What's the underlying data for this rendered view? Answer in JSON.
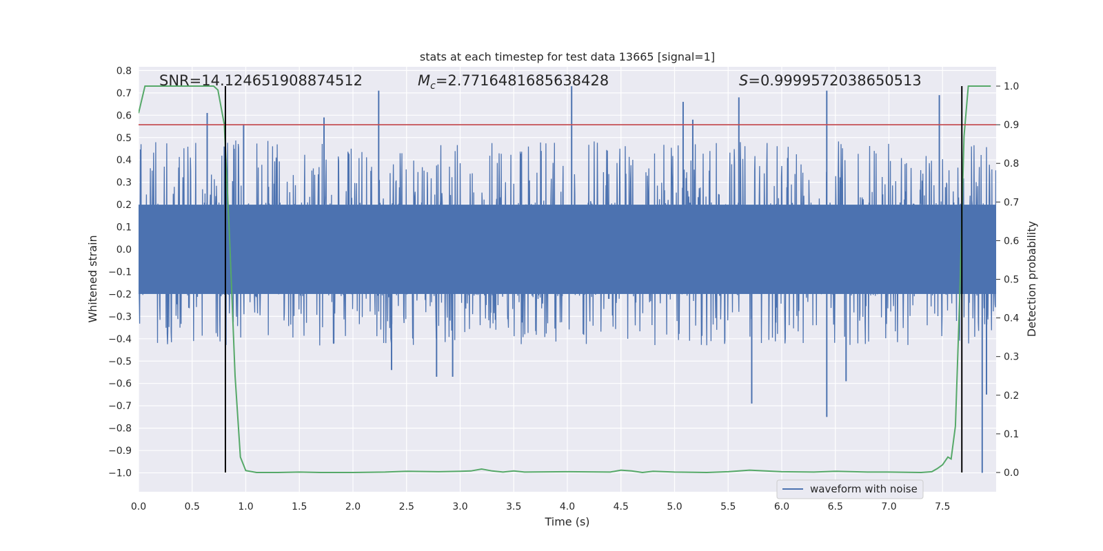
{
  "chart_data": {
    "type": "line",
    "title": "stats at each timestep for test data 13665 [signal=1]",
    "xlabel": "Time (s)",
    "ylabel_left": "Whitened strain",
    "ylabel_right": "Detection probability",
    "xlim": [
      0.0,
      8.0
    ],
    "ylim_left": [
      -1.08,
      0.82
    ],
    "ylim_right": [
      -0.05,
      1.085
    ],
    "x_ticks": [
      "0.0",
      "0.5",
      "1.0",
      "1.5",
      "2.0",
      "2.5",
      "3.0",
      "3.5",
      "4.0",
      "4.5",
      "5.0",
      "5.5",
      "6.0",
      "6.5",
      "7.0",
      "7.5"
    ],
    "y_ticks_left": [
      "0.8",
      "0.7",
      "0.6",
      "0.5",
      "0.4",
      "0.3",
      "0.2",
      "0.1",
      "0.0",
      "−0.1",
      "−0.2",
      "−0.3",
      "−0.4",
      "−0.5",
      "−0.6",
      "−0.7",
      "−0.8",
      "−0.9",
      "−1.0"
    ],
    "y_ticks_right": [
      "0.0",
      "0.1",
      "0.2",
      "0.3",
      "0.4",
      "0.5",
      "0.6",
      "0.7",
      "0.8",
      "0.9",
      "1.0"
    ],
    "annotations": {
      "snr": "SNR=14.124651908874512",
      "mc_sym": "M",
      "mc_sub": "c",
      "mc_val": "=2.7716481685638428",
      "s_sym": "S",
      "s_val": "=0.9999572038650513"
    },
    "legend": {
      "label": "waveform with noise",
      "location": "lower-right"
    },
    "threshold_line": {
      "value_right_axis": 0.9,
      "color": "#c44e52"
    },
    "vertical_markers": [
      0.81,
      7.68
    ],
    "series": [
      {
        "name": "waveform with noise",
        "axis": "left",
        "color": "#4c72b0",
        "duration_s": 8.0,
        "envelope": {
          "core_upper": 0.2,
          "core_lower": -0.2,
          "typical_peak": 0.45,
          "typical_trough": -0.45
        },
        "spikes": [
          {
            "t": 0.64,
            "v": 0.61
          },
          {
            "t": 0.8,
            "v": 0.46
          },
          {
            "t": 0.98,
            "v": 0.56
          },
          {
            "t": 1.73,
            "v": 0.59
          },
          {
            "t": 2.24,
            "v": 0.71
          },
          {
            "t": 2.36,
            "v": -0.54
          },
          {
            "t": 2.78,
            "v": -0.57
          },
          {
            "t": 2.93,
            "v": -0.57
          },
          {
            "t": 4.04,
            "v": 0.73
          },
          {
            "t": 5.08,
            "v": 0.66
          },
          {
            "t": 5.17,
            "v": 0.58
          },
          {
            "t": 5.6,
            "v": 0.68
          },
          {
            "t": 5.72,
            "v": -0.69
          },
          {
            "t": 6.42,
            "v": 0.71
          },
          {
            "t": 6.42,
            "v": -0.75
          },
          {
            "t": 6.6,
            "v": -0.59
          },
          {
            "t": 7.47,
            "v": 0.69
          },
          {
            "t": 7.87,
            "v": -1.0
          },
          {
            "t": 7.91,
            "v": -0.65
          }
        ]
      },
      {
        "name": "detection probability",
        "axis": "right",
        "color": "#55a868",
        "x": [
          0.0,
          0.06,
          0.12,
          0.2,
          0.3,
          0.4,
          0.5,
          0.6,
          0.7,
          0.74,
          0.8,
          0.85,
          0.9,
          0.95,
          1.0,
          1.1,
          1.3,
          1.5,
          1.7,
          2.0,
          2.3,
          2.5,
          2.8,
          3.0,
          3.1,
          3.2,
          3.3,
          3.4,
          3.5,
          3.6,
          4.0,
          4.4,
          4.5,
          4.6,
          4.7,
          4.8,
          5.0,
          5.3,
          5.5,
          5.7,
          6.0,
          6.3,
          6.5,
          6.8,
          7.0,
          7.3,
          7.4,
          7.45,
          7.5,
          7.55,
          7.58,
          7.62,
          7.66,
          7.7,
          7.74,
          7.78,
          7.95
        ],
        "values": [
          0.93,
          1.0,
          1.0,
          1.0,
          1.0,
          1.0,
          1.0,
          1.0,
          1.0,
          0.99,
          0.9,
          0.6,
          0.25,
          0.04,
          0.005,
          0.0,
          0.0,
          0.001,
          0.0,
          0.0,
          0.001,
          0.003,
          0.002,
          0.003,
          0.004,
          0.009,
          0.004,
          0.001,
          0.004,
          0.001,
          0.002,
          0.001,
          0.006,
          0.004,
          0.0,
          0.003,
          0.001,
          0.0,
          0.002,
          0.006,
          0.002,
          0.001,
          0.003,
          0.001,
          0.001,
          0.0,
          0.002,
          0.01,
          0.02,
          0.04,
          0.035,
          0.12,
          0.45,
          0.87,
          1.0,
          1.0,
          1.0
        ]
      }
    ]
  }
}
